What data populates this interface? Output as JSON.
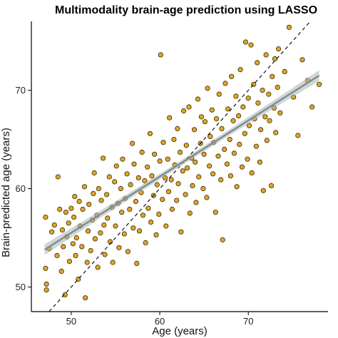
{
  "chart_data": {
    "type": "scatter",
    "title": "Multimodality brain-age prediction using LASSO",
    "xlabel": "Age (years)",
    "ylabel": "Brain-predicted age (years)",
    "xlim": [
      45.5,
      79
    ],
    "ylim": [
      47.5,
      77
    ],
    "x_ticks": [
      50,
      60,
      70
    ],
    "y_ticks": [
      50,
      60,
      70
    ],
    "grid": false,
    "legend": "none",
    "reference_line": {
      "type": "identity",
      "style": "dashed",
      "color": "#000000"
    },
    "fit_line": {
      "from": [
        47,
        53.8
      ],
      "to": [
        78,
        71.5
      ],
      "ci_halfwidth_ends": 0.55,
      "ci_halfwidth_mid": 0.28,
      "color": "#7f8c8c",
      "band_color": "#a9b4b4"
    },
    "point_color": "#e0a526",
    "point_edge_color": "#3a2a05",
    "points": [
      [
        47.1,
        57.1
      ],
      [
        47.1,
        51.9
      ],
      [
        47.2,
        50.3
      ],
      [
        47.2,
        49.7
      ],
      [
        47.5,
        53.9
      ],
      [
        47.8,
        55.6
      ],
      [
        48.1,
        56.3
      ],
      [
        48.4,
        53.2
      ],
      [
        48.5,
        61.2
      ],
      [
        48.7,
        57.9
      ],
      [
        48.9,
        51.6
      ],
      [
        49.0,
        55.8
      ],
      [
        49.1,
        54.1
      ],
      [
        49.3,
        49.2
      ],
      [
        49.4,
        57.6
      ],
      [
        49.5,
        55.1
      ],
      [
        49.7,
        56.5
      ],
      [
        49.8,
        52.6
      ],
      [
        50.0,
        58.0
      ],
      [
        50.2,
        54.4
      ],
      [
        50.3,
        57.1
      ],
      [
        50.4,
        59.2
      ],
      [
        50.5,
        53.2
      ],
      [
        50.6,
        55.0
      ],
      [
        50.8,
        50.8
      ],
      [
        50.9,
        58.7
      ],
      [
        51.0,
        56.2
      ],
      [
        51.2,
        54.1
      ],
      [
        51.3,
        57.9
      ],
      [
        51.5,
        60.2
      ],
      [
        51.6,
        48.9
      ],
      [
        51.8,
        52.5
      ],
      [
        51.9,
        55.7
      ],
      [
        52.0,
        58.4
      ],
      [
        52.2,
        53.7
      ],
      [
        52.4,
        56.8
      ],
      [
        52.5,
        59.5
      ],
      [
        52.6,
        61.6
      ],
      [
        52.7,
        54.9
      ],
      [
        52.9,
        57.3
      ],
      [
        53.0,
        52.0
      ],
      [
        53.1,
        60.0
      ],
      [
        53.3,
        55.5
      ],
      [
        53.4,
        58.8
      ],
      [
        53.6,
        63.1
      ],
      [
        53.7,
        56.3
      ],
      [
        53.8,
        53.3
      ],
      [
        54.0,
        59.4
      ],
      [
        54.1,
        57.0
      ],
      [
        54.3,
        61.2
      ],
      [
        54.4,
        54.6
      ],
      [
        54.6,
        58.1
      ],
      [
        54.7,
        52.5
      ],
      [
        54.9,
        60.7
      ],
      [
        55.0,
        56.2
      ],
      [
        55.1,
        62.3
      ],
      [
        55.3,
        58.5
      ],
      [
        55.4,
        54.0
      ],
      [
        55.6,
        60.0
      ],
      [
        55.7,
        57.6
      ],
      [
        55.8,
        63.0
      ],
      [
        56.0,
        55.4
      ],
      [
        56.1,
        59.0
      ],
      [
        56.3,
        61.5
      ],
      [
        56.4,
        53.6
      ],
      [
        56.6,
        57.9
      ],
      [
        56.7,
        60.4
      ],
      [
        56.9,
        64.6
      ],
      [
        57.0,
        56.0
      ],
      [
        57.1,
        62.5
      ],
      [
        57.3,
        58.7
      ],
      [
        57.4,
        52.4
      ],
      [
        57.6,
        61.1
      ],
      [
        57.7,
        55.7
      ],
      [
        57.9,
        59.6
      ],
      [
        58.0,
        63.7
      ],
      [
        58.1,
        57.3
      ],
      [
        58.3,
        60.8
      ],
      [
        58.4,
        54.5
      ],
      [
        58.6,
        62.2
      ],
      [
        58.7,
        58.0
      ],
      [
        58.9,
        65.6
      ],
      [
        59.0,
        56.6
      ],
      [
        59.1,
        61.3
      ],
      [
        59.3,
        59.3
      ],
      [
        59.4,
        63.5
      ],
      [
        59.6,
        55.3
      ],
      [
        59.7,
        60.4
      ],
      [
        59.9,
        57.4
      ],
      [
        60.0,
        62.8
      ],
      [
        60.1,
        73.6
      ],
      [
        60.3,
        58.9
      ],
      [
        60.4,
        64.7
      ],
      [
        60.6,
        61.1
      ],
      [
        60.7,
        56.2
      ],
      [
        60.9,
        63.0
      ],
      [
        61.0,
        59.7
      ],
      [
        61.1,
        67.2
      ],
      [
        61.3,
        60.9
      ],
      [
        61.4,
        57.9
      ],
      [
        61.6,
        65.0
      ],
      [
        61.7,
        62.4
      ],
      [
        61.9,
        58.8
      ],
      [
        62.0,
        66.1
      ],
      [
        62.1,
        60.5
      ],
      [
        62.3,
        63.7
      ],
      [
        62.4,
        55.6
      ],
      [
        62.6,
        61.8
      ],
      [
        62.7,
        67.9
      ],
      [
        62.9,
        59.4
      ],
      [
        63.0,
        64.4
      ],
      [
        63.1,
        62.1
      ],
      [
        63.3,
        68.3
      ],
      [
        63.4,
        57.5
      ],
      [
        63.6,
        63.1
      ],
      [
        63.7,
        60.3
      ],
      [
        63.9,
        66.0
      ],
      [
        64.0,
        62.7
      ],
      [
        64.1,
        58.6
      ],
      [
        64.3,
        69.1
      ],
      [
        64.4,
        61.2
      ],
      [
        64.6,
        64.6
      ],
      [
        64.7,
        67.3
      ],
      [
        64.9,
        60.0
      ],
      [
        65.0,
        63.5
      ],
      [
        65.1,
        66.8
      ],
      [
        65.3,
        59.1
      ],
      [
        65.4,
        70.2
      ],
      [
        65.6,
        62.3
      ],
      [
        65.7,
        65.3
      ],
      [
        65.9,
        68.0
      ],
      [
        66.0,
        61.5
      ],
      [
        66.1,
        64.7
      ],
      [
        66.3,
        57.6
      ],
      [
        66.4,
        67.1
      ],
      [
        66.6,
        63.3
      ],
      [
        66.7,
        69.6
      ],
      [
        66.9,
        60.9
      ],
      [
        67.0,
        66.1
      ],
      [
        67.1,
        54.8
      ],
      [
        67.3,
        64.0
      ],
      [
        67.4,
        70.7
      ],
      [
        67.6,
        62.5
      ],
      [
        67.7,
        68.1
      ],
      [
        67.9,
        65.0
      ],
      [
        68.0,
        61.3
      ],
      [
        68.1,
        71.4
      ],
      [
        68.3,
        66.9
      ],
      [
        68.4,
        63.6
      ],
      [
        68.6,
        69.4
      ],
      [
        68.7,
        60.2
      ],
      [
        68.9,
        67.4
      ],
      [
        69.0,
        64.5
      ],
      [
        69.1,
        72.1
      ],
      [
        69.3,
        62.2
      ],
      [
        69.4,
        68.3
      ],
      [
        69.6,
        65.6
      ],
      [
        69.7,
        74.9
      ],
      [
        69.9,
        63.0
      ],
      [
        70.0,
        69.2
      ],
      [
        70.1,
        66.4
      ],
      [
        70.3,
        74.6
      ],
      [
        70.4,
        61.6
      ],
      [
        70.6,
        70.6
      ],
      [
        70.7,
        67.1
      ],
      [
        70.9,
        64.3
      ],
      [
        71.0,
        72.8
      ],
      [
        71.1,
        68.7
      ],
      [
        71.3,
        62.7
      ],
      [
        71.4,
        66.0
      ],
      [
        71.6,
        70.0
      ],
      [
        71.7,
        59.8
      ],
      [
        71.9,
        67.3
      ],
      [
        72.0,
        73.6
      ],
      [
        72.1,
        64.9
      ],
      [
        72.3,
        69.6
      ],
      [
        72.4,
        66.9
      ],
      [
        72.6,
        60.3
      ],
      [
        72.7,
        71.4
      ],
      [
        72.9,
        68.2
      ],
      [
        73.0,
        73.2
      ],
      [
        73.1,
        65.7
      ],
      [
        73.3,
        70.3
      ],
      [
        73.4,
        74.2
      ],
      [
        73.6,
        67.7
      ],
      [
        74.1,
        71.9
      ],
      [
        74.6,
        76.4
      ],
      [
        75.1,
        69.3
      ],
      [
        75.6,
        65.4
      ],
      [
        76.1,
        73.1
      ],
      [
        76.7,
        71.0
      ],
      [
        77.2,
        68.3
      ],
      [
        78.0,
        70.6
      ]
    ]
  }
}
